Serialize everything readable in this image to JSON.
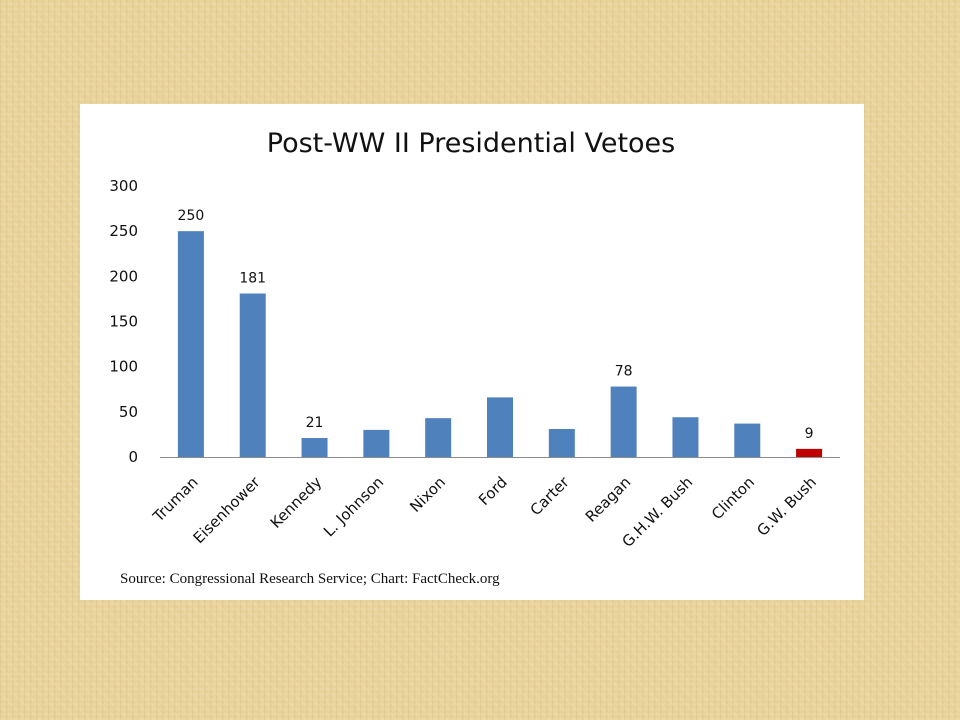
{
  "chart_data": {
    "type": "bar",
    "title": "Post-WW II Presidential Vetoes",
    "xlabel": "",
    "ylabel": "",
    "categories": [
      "Truman",
      "Eisenhower",
      "Kennedy",
      "L. Johnson",
      "Nixon",
      "Ford",
      "Carter",
      "Reagan",
      "G.H.W. Bush",
      "Clinton",
      "G.W. Bush"
    ],
    "values": [
      250,
      181,
      21,
      30,
      43,
      66,
      31,
      78,
      44,
      37,
      9
    ],
    "data_labels": [
      "250",
      "181",
      "21",
      "",
      "",
      "",
      "",
      "78",
      "",
      "",
      "9"
    ],
    "ylim": [
      0,
      300
    ],
    "yticks": [
      "0",
      "50",
      "100",
      "150",
      "200",
      "250",
      "300"
    ],
    "grid": false,
    "legend": "none",
    "colors": {
      "default": "#4f81bd",
      "highlight": "#c00000"
    },
    "highlight_category": "G.W. Bush"
  },
  "source": "Source: Congressional Research Service; Chart: FactCheck.org"
}
